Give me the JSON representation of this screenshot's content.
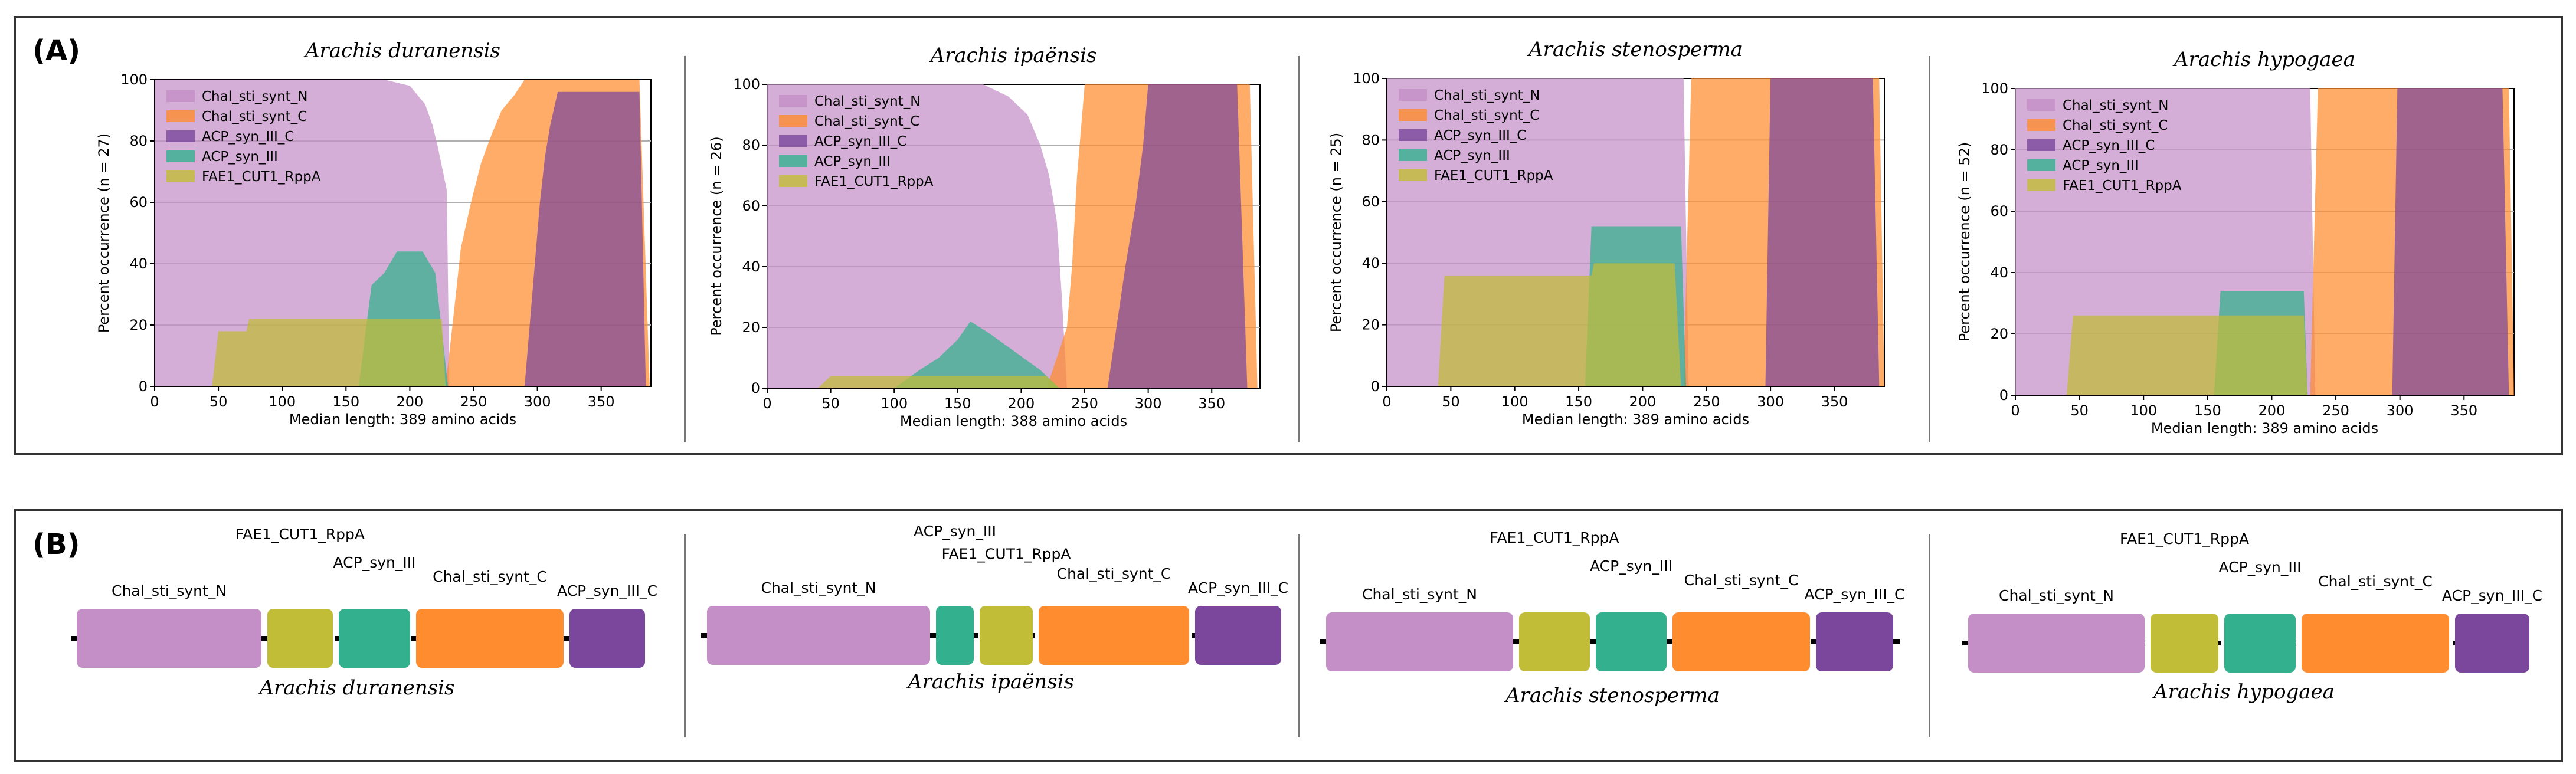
{
  "panels": {
    "A": {
      "letter": "(A)"
    },
    "B": {
      "letter": "(B)"
    }
  },
  "colors": {
    "Chal_sti_synt_N": "#c38fc6",
    "Chal_sti_synt_C": "#ff8c2e",
    "ACP_syn_III_C": "#7b479c",
    "ACP_syn_III": "#33b18e",
    "FAE1_CUT1_RppA": "#c1bd36"
  },
  "legend_entries": [
    "Chal_sti_synt_N",
    "Chal_sti_synt_C",
    "ACP_syn_III_C",
    "ACP_syn_III",
    "FAE1_CUT1_RppA"
  ],
  "chart_data": [
    {
      "type": "area",
      "title": "Arachis duranensis",
      "xlabel": "Median length: 389 amino acids",
      "ylabel": "Percent occurrence (n = 27)",
      "xlim": [
        0,
        389
      ],
      "ylim": [
        0,
        100
      ],
      "xticks": [
        "0",
        "50",
        "100",
        "150",
        "200",
        "250",
        "300",
        "350"
      ],
      "yticks": [
        "0",
        "20",
        "40",
        "60",
        "80",
        "100"
      ],
      "grid": "y",
      "legend": "top-left",
      "series": [
        {
          "name": "Chal_sti_synt_N",
          "x": [
            0,
            180,
            200,
            212,
            218,
            222,
            226,
            229,
            231
          ],
          "y": [
            100,
            100,
            98,
            92,
            85,
            78,
            70,
            64,
            0
          ]
        },
        {
          "name": "Chal_sti_synt_C",
          "x": [
            228,
            234,
            240,
            248,
            256,
            264,
            272,
            282,
            290,
            380,
            388
          ],
          "y": [
            0,
            22,
            45,
            60,
            73,
            82,
            90,
            95,
            100,
            100,
            0
          ]
        },
        {
          "name": "ACP_syn_III_C",
          "x": [
            290,
            294,
            298,
            302,
            306,
            310,
            316,
            380,
            385
          ],
          "y": [
            0,
            20,
            40,
            60,
            75,
            85,
            96,
            96,
            0
          ]
        },
        {
          "name": "ACP_syn_III",
          "x": [
            160,
            170,
            180,
            190,
            210,
            220,
            230
          ],
          "y": [
            0,
            33,
            37,
            44,
            44,
            37,
            0
          ]
        },
        {
          "name": "FAE1_CUT1_RppA",
          "x": [
            45,
            50,
            72,
            74,
            225,
            228
          ],
          "y": [
            0,
            18,
            18,
            22,
            22,
            0
          ]
        }
      ]
    },
    {
      "type": "area",
      "title": "Arachis ipaënsis",
      "xlabel": "Median length: 388 amino acids",
      "ylabel": "Percent occurrence (n = 26)",
      "xlim": [
        0,
        388
      ],
      "ylim": [
        0,
        100
      ],
      "xticks": [
        "0",
        "50",
        "100",
        "150",
        "200",
        "250",
        "300",
        "350"
      ],
      "yticks": [
        "0",
        "20",
        "40",
        "60",
        "80",
        "100"
      ],
      "grid": "y",
      "legend": "top-left",
      "series": [
        {
          "name": "Chal_sti_synt_N",
          "x": [
            0,
            170,
            190,
            205,
            215,
            222,
            228,
            232,
            236
          ],
          "y": [
            100,
            100,
            96,
            90,
            80,
            70,
            55,
            30,
            0
          ]
        },
        {
          "name": "Chal_sti_synt_C",
          "x": [
            220,
            228,
            236,
            240,
            244,
            250,
            380,
            386
          ],
          "y": [
            0,
            10,
            20,
            40,
            70,
            100,
            100,
            0
          ]
        },
        {
          "name": "ACP_syn_III_C",
          "x": [
            268,
            275,
            282,
            290,
            296,
            300,
            370,
            378
          ],
          "y": [
            0,
            20,
            40,
            60,
            80,
            100,
            100,
            0
          ]
        },
        {
          "name": "ACP_syn_III",
          "x": [
            100,
            120,
            135,
            150,
            160,
            175,
            195,
            215,
            230
          ],
          "y": [
            0,
            6,
            10,
            16,
            22,
            18,
            12,
            6,
            0
          ]
        },
        {
          "name": "FAE1_CUT1_RppA",
          "x": [
            40,
            50,
            220,
            230
          ],
          "y": [
            0,
            4,
            4,
            0
          ]
        }
      ]
    },
    {
      "type": "area",
      "title": "Arachis stenosperma",
      "xlabel": "Median length: 389 amino acids",
      "ylabel": "Percent occurrence (n = 25)",
      "xlim": [
        0,
        389
      ],
      "ylim": [
        0,
        100
      ],
      "xticks": [
        "0",
        "50",
        "100",
        "150",
        "200",
        "250",
        "300",
        "350"
      ],
      "yticks": [
        "0",
        "20",
        "40",
        "60",
        "80",
        "100"
      ],
      "grid": "y",
      "legend": "top-left",
      "series": [
        {
          "name": "Chal_sti_synt_N",
          "x": [
            0,
            225,
            232,
            236
          ],
          "y": [
            100,
            100,
            100,
            0
          ]
        },
        {
          "name": "Chal_sti_synt_C",
          "x": [
            232,
            238,
            385,
            389
          ],
          "y": [
            0,
            100,
            100,
            0
          ]
        },
        {
          "name": "ACP_syn_III_C",
          "x": [
            296,
            300,
            380,
            385
          ],
          "y": [
            0,
            100,
            100,
            0
          ]
        },
        {
          "name": "ACP_syn_III",
          "x": [
            155,
            160,
            230,
            234
          ],
          "y": [
            0,
            52,
            52,
            0
          ]
        },
        {
          "name": "FAE1_CUT1_RppA",
          "x": [
            40,
            45,
            160,
            162,
            225,
            230
          ],
          "y": [
            0,
            36,
            36,
            40,
            40,
            0
          ]
        }
      ]
    },
    {
      "type": "area",
      "title": "Arachis hypogaea",
      "xlabel": "Median length: 389 amino acids",
      "ylabel": "Percent occurrence (n = 52)",
      "xlim": [
        0,
        389
      ],
      "ylim": [
        0,
        100
      ],
      "xticks": [
        "0",
        "50",
        "100",
        "150",
        "200",
        "250",
        "300",
        "350"
      ],
      "yticks": [
        "0",
        "20",
        "40",
        "60",
        "80",
        "100"
      ],
      "grid": "y",
      "legend": "top-left",
      "series": [
        {
          "name": "Chal_sti_synt_N",
          "x": [
            0,
            225,
            230,
            234
          ],
          "y": [
            100,
            100,
            100,
            0
          ]
        },
        {
          "name": "Chal_sti_synt_C",
          "x": [
            230,
            236,
            385,
            389
          ],
          "y": [
            0,
            100,
            100,
            0
          ]
        },
        {
          "name": "ACP_syn_III_C",
          "x": [
            294,
            298,
            380,
            385
          ],
          "y": [
            0,
            100,
            100,
            0
          ]
        },
        {
          "name": "ACP_syn_III",
          "x": [
            155,
            160,
            225,
            228
          ],
          "y": [
            0,
            34,
            34,
            0
          ]
        },
        {
          "name": "FAE1_CUT1_RppA",
          "x": [
            40,
            45,
            225,
            228
          ],
          "y": [
            0,
            26,
            26,
            0
          ]
        }
      ]
    }
  ],
  "diagrams": [
    {
      "species": "Arachis duranensis",
      "domains": [
        {
          "name": "Chal_sti_synt_N",
          "start": 0,
          "end": 313,
          "label_level": 1
        },
        {
          "name": "FAE1_CUT1_RppA",
          "start": 323,
          "end": 434,
          "label_level": 3
        },
        {
          "name": "ACP_syn_III",
          "start": 444,
          "end": 565,
          "label_level": 2
        },
        {
          "name": "Chal_sti_synt_C",
          "start": 575,
          "end": 825,
          "label_level": 1.5
        },
        {
          "name": "ACP_syn_III_C",
          "start": 835,
          "end": 963,
          "label_level": 1
        }
      ]
    },
    {
      "species": "Arachis ipaënsis",
      "domains": [
        {
          "name": "Chal_sti_synt_N",
          "start": 0,
          "end": 378,
          "label_level": 1
        },
        {
          "name": "ACP_syn_III",
          "start": 388,
          "end": 452,
          "label_level": 3
        },
        {
          "name": "FAE1_CUT1_RppA",
          "start": 462,
          "end": 552,
          "label_level": 2.2
        },
        {
          "name": "Chal_sti_synt_C",
          "start": 562,
          "end": 817,
          "label_level": 1.5
        },
        {
          "name": "ACP_syn_III_C",
          "start": 827,
          "end": 973,
          "label_level": 1
        }
      ]
    },
    {
      "species": "Arachis stenosperma",
      "domains": [
        {
          "name": "Chal_sti_synt_N",
          "start": 0,
          "end": 317,
          "label_level": 1
        },
        {
          "name": "FAE1_CUT1_RppA",
          "start": 327,
          "end": 447,
          "label_level": 3
        },
        {
          "name": "ACP_syn_III",
          "start": 457,
          "end": 577,
          "label_level": 2
        },
        {
          "name": "Chal_sti_synt_C",
          "start": 587,
          "end": 820,
          "label_level": 1.5
        },
        {
          "name": "ACP_syn_III_C",
          "start": 830,
          "end": 961,
          "label_level": 1
        }
      ]
    },
    {
      "species": "Arachis hypogaea",
      "domains": [
        {
          "name": "Chal_sti_synt_N",
          "start": 0,
          "end": 299,
          "label_level": 1
        },
        {
          "name": "FAE1_CUT1_RppA",
          "start": 309,
          "end": 424,
          "label_level": 3
        },
        {
          "name": "ACP_syn_III",
          "start": 434,
          "end": 555,
          "label_level": 2
        },
        {
          "name": "Chal_sti_synt_C",
          "start": 565,
          "end": 815,
          "label_level": 1.5
        },
        {
          "name": "ACP_syn_III_C",
          "start": 825,
          "end": 951,
          "label_level": 1
        }
      ]
    }
  ]
}
